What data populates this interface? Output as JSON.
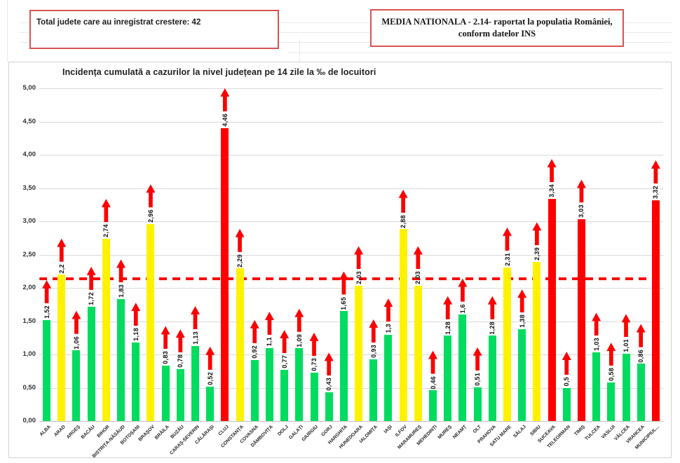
{
  "top": {
    "left_box_text": "Total judete care au inregistrat crestere: 42",
    "right_box_line1": "MEDIA NATIONALA - 2.14-  raportat la populatia României,",
    "right_box_line2": "conform datelor INS",
    "box_border_color": "#d95252"
  },
  "chart_data": {
    "type": "bar",
    "title": "Incidența cumulată a cazurilor la nivel județean pe 14 zile la ‰ de locuitori",
    "xlabel": "",
    "ylabel": "",
    "ylim": [
      0,
      5
    ],
    "ytick_step": 0.5,
    "ytick_labels": [
      "0,00",
      "0,50",
      "1,00",
      "1,50",
      "2,00",
      "2,50",
      "3,00",
      "3,50",
      "4,00",
      "4,50",
      "5,00"
    ],
    "grid": true,
    "legend": null,
    "reference_line": {
      "value": 2.14,
      "label": "media nationala",
      "color": "#fb0000",
      "style": "dashed"
    },
    "marker_icon": "up-arrow",
    "colors": {
      "green": "#00dc5f",
      "yellow": "#fff200",
      "red": "#fe0000"
    },
    "color_rule": {
      "green_below": 2.0,
      "yellow_below": 3.0,
      "red_from": 3.0
    },
    "categories": [
      "ALBA",
      "ARAD",
      "ARGEȘ",
      "BACĂU",
      "BIHOR",
      "BISTRIȚA-NĂSĂUD",
      "BOTOȘANI",
      "BRAȘOV",
      "BRĂILA",
      "BUZĂU",
      "CARAȘ-SEVERIN",
      "CĂLĂRAȘI",
      "CLUJ",
      "CONSTANȚA",
      "COVASNA",
      "DÂMBOVIȚA",
      "DOLJ",
      "GALAȚI",
      "GIURGIU",
      "GORJ",
      "HARGHITA",
      "HUNEDOARA",
      "IALOMIȚA",
      "IAȘI",
      "ILFOV",
      "MARAMUREȘ",
      "MEHEDINȚI",
      "MUREȘ",
      "NEAMȚ",
      "OLT",
      "PRAHOVA",
      "SATU MARE",
      "SĂLAJ",
      "SIBIU",
      "SUCEAVA",
      "TELEORMAN",
      "TIMIȘ",
      "TULCEA",
      "VASLUI",
      "VÂLCEA",
      "VRANCEA",
      "MUNICIPIUL..."
    ],
    "values": [
      1.52,
      2.2,
      1.06,
      1.72,
      2.74,
      1.83,
      1.18,
      2.96,
      0.83,
      0.78,
      1.13,
      0.52,
      4.46,
      2.29,
      0.92,
      1.1,
      0.77,
      1.09,
      0.73,
      0.43,
      1.65,
      2.03,
      0.93,
      1.3,
      2.88,
      2.03,
      0.46,
      1.28,
      1.6,
      0.51,
      1.28,
      2.31,
      1.38,
      2.39,
      3.34,
      0.5,
      3.03,
      1.03,
      0.58,
      1.01,
      0.86,
      3.32
    ],
    "value_labels": [
      "1,52",
      "2,2",
      "1,06",
      "1,72",
      "2,74",
      "1,83",
      "1,18",
      "2,96",
      "0,83",
      "0,78",
      "1,13",
      "0,52",
      "4,46",
      "2,29",
      "0,92",
      "1,1",
      "0,77",
      "1,09",
      "0,73",
      "0,43",
      "1,65",
      "2,03",
      "0,93",
      "1,3",
      "2,88",
      "2,03",
      "0,46",
      "1,28",
      "1,6",
      "0,51",
      "1,28",
      "2,31",
      "1,38",
      "2,39",
      "3,34",
      "0,5",
      "3,03",
      "1,03",
      "0,58",
      "1,01",
      "0,86",
      "3,32"
    ],
    "bar_colors": [
      "green",
      "yellow",
      "green",
      "green",
      "yellow",
      "green",
      "green",
      "yellow",
      "green",
      "green",
      "green",
      "green",
      "red",
      "yellow",
      "green",
      "green",
      "green",
      "green",
      "green",
      "green",
      "green",
      "yellow",
      "green",
      "green",
      "yellow",
      "yellow",
      "green",
      "green",
      "green",
      "green",
      "green",
      "yellow",
      "green",
      "yellow",
      "red",
      "green",
      "red",
      "green",
      "green",
      "green",
      "green",
      "red"
    ]
  }
}
